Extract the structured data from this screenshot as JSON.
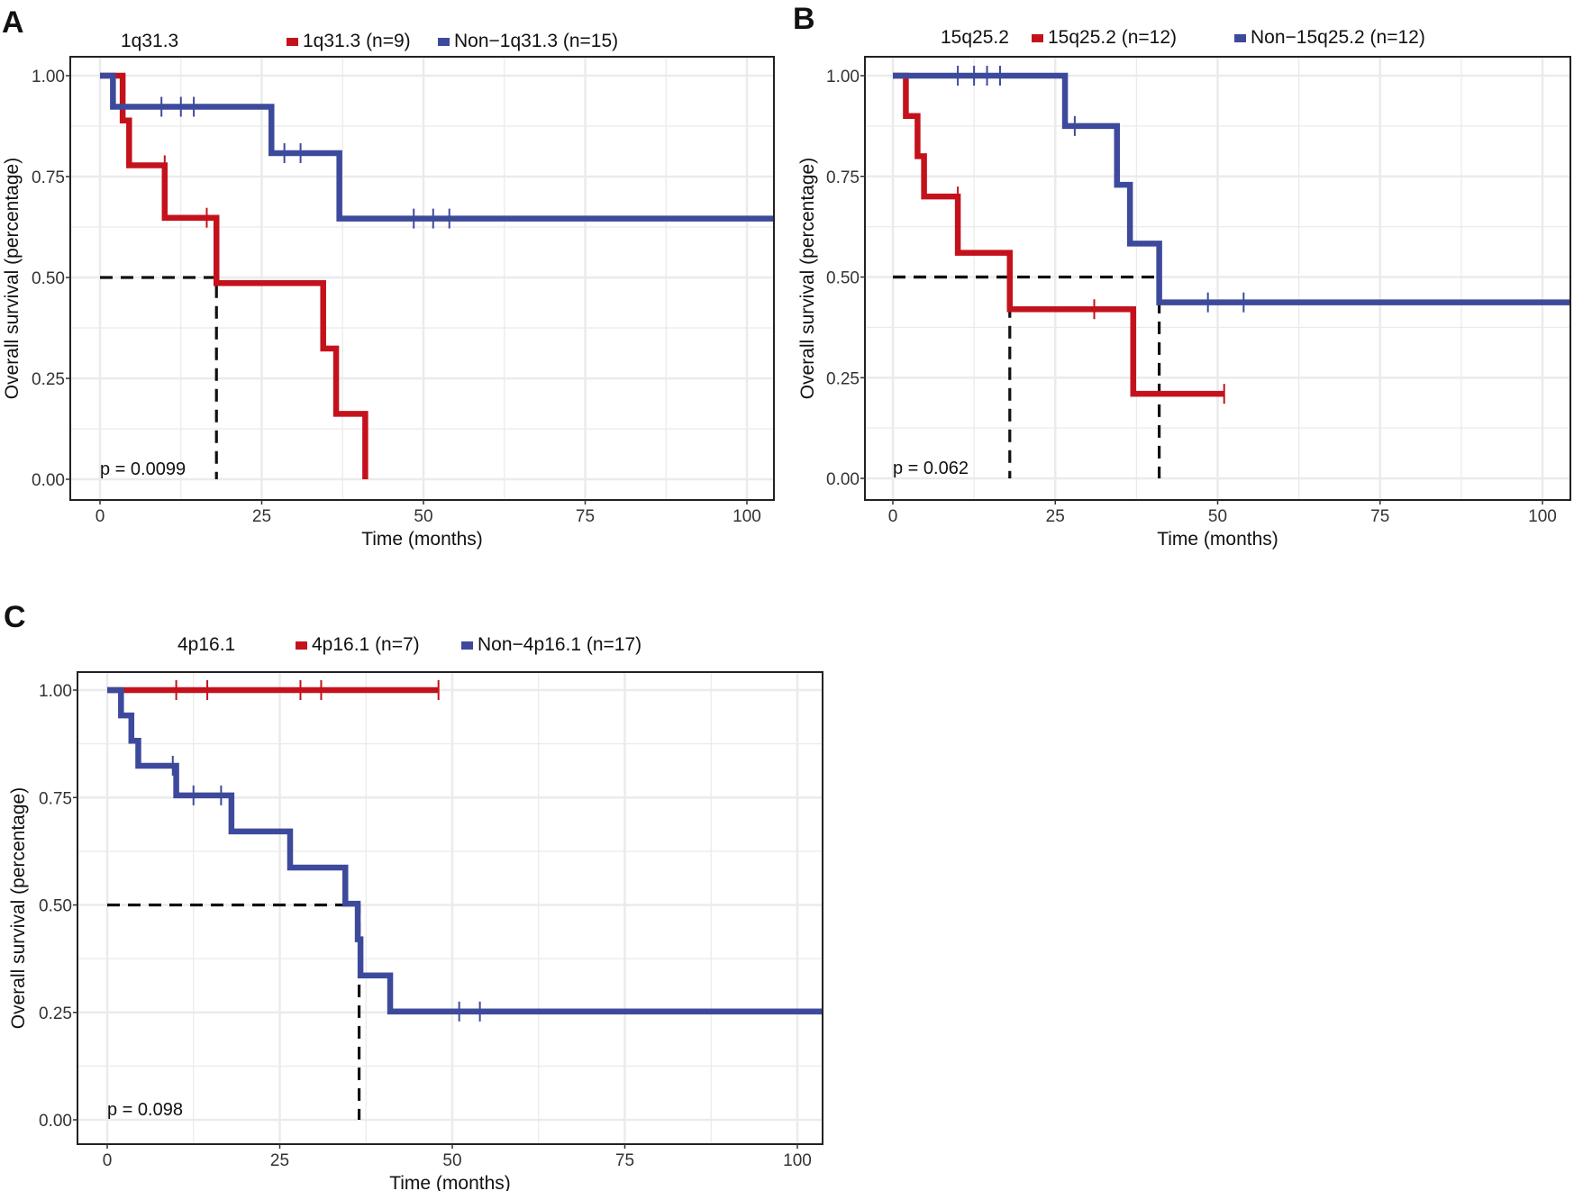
{
  "colors": {
    "red": "#c4121c",
    "blue": "#3d4a9c",
    "grid": "#ebebeb",
    "median": "#111111"
  },
  "chart_data": [
    {
      "type": "line",
      "panel": "A",
      "legend_title": "1q31.3",
      "xlabel": "Time (months)",
      "ylabel": "Overall survival (percentage)",
      "xlim": [
        -5,
        105
      ],
      "ylim": [
        -0.05,
        1.05
      ],
      "xticks": [
        "0",
        "25",
        "50",
        "75",
        "100"
      ],
      "xtick_values": [
        0,
        25,
        50,
        75,
        100
      ],
      "yticks": [
        "0.00",
        "0.25",
        "0.50",
        "0.75",
        "1.00"
      ],
      "ytick_values": [
        0,
        0.25,
        0.5,
        0.75,
        1
      ],
      "p_value": "p = 0.0099",
      "medians": [
        18
      ],
      "series": [
        {
          "name": "1q31.3 (n=9)",
          "color": "red",
          "steps": [
            [
              0,
              1
            ],
            [
              3.5,
              0.889
            ],
            [
              4.5,
              0.778
            ],
            [
              10,
              0.648
            ],
            [
              18,
              0.486
            ],
            [
              34.5,
              0.324
            ],
            [
              36.5,
              0.162
            ],
            [
              41,
              0
            ]
          ],
          "end": 41,
          "censors": [
            [
              10,
              0.778
            ],
            [
              16.5,
              0.648
            ]
          ]
        },
        {
          "name": "Non−1q31.3 (n=15)",
          "color": "blue",
          "steps": [
            [
              0,
              1
            ],
            [
              2,
              0.923
            ],
            [
              26.5,
              0.808
            ],
            [
              37,
              0.646
            ]
          ],
          "end": 105,
          "censors": [
            [
              9.5,
              0.923
            ],
            [
              12.5,
              0.923
            ],
            [
              14.5,
              0.923
            ],
            [
              28.5,
              0.808
            ],
            [
              31,
              0.808
            ],
            [
              48.5,
              0.646
            ],
            [
              51.5,
              0.646
            ],
            [
              54,
              0.646
            ]
          ]
        }
      ]
    },
    {
      "type": "line",
      "panel": "B",
      "legend_title": "15q25.2",
      "xlabel": "Time (months)",
      "ylabel": "Overall survival (percentage)",
      "xlim": [
        -5,
        105
      ],
      "ylim": [
        -0.05,
        1.05
      ],
      "xticks": [
        "0",
        "25",
        "50",
        "75",
        "100"
      ],
      "xtick_values": [
        0,
        25,
        50,
        75,
        100
      ],
      "yticks": [
        "0.00",
        "0.25",
        "0.50",
        "0.75",
        "1.00"
      ],
      "ytick_values": [
        0,
        0.25,
        0.5,
        0.75,
        1
      ],
      "p_value": "p = 0.062",
      "medians": [
        18,
        41
      ],
      "series": [
        {
          "name": "15q25.2 (n=12)",
          "color": "red",
          "steps": [
            [
              0,
              1
            ],
            [
              2,
              0.9
            ],
            [
              3.8,
              0.8
            ],
            [
              4.8,
              0.7
            ],
            [
              10,
              0.56
            ],
            [
              18,
              0.42
            ],
            [
              37,
              0.21
            ]
          ],
          "end": 51,
          "censors": [
            [
              10,
              0.7
            ],
            [
              31,
              0.42
            ],
            [
              51,
              0.21
            ]
          ]
        },
        {
          "name": "Non−15q25.2 (n=12)",
          "color": "blue",
          "steps": [
            [
              0,
              1
            ],
            [
              26.5,
              0.875
            ],
            [
              34.5,
              0.729
            ],
            [
              36.5,
              0.583
            ],
            [
              41,
              0.437
            ]
          ],
          "end": 105,
          "censors": [
            [
              10,
              1
            ],
            [
              12.5,
              1
            ],
            [
              14.5,
              1
            ],
            [
              16.5,
              1
            ],
            [
              28,
              0.875
            ],
            [
              48.5,
              0.437
            ],
            [
              54,
              0.437
            ]
          ]
        }
      ]
    },
    {
      "type": "line",
      "panel": "C",
      "legend_title": "4p16.1",
      "xlabel": "Time (months)",
      "ylabel": "Overall survival (percentage)",
      "xlim": [
        -5,
        105
      ],
      "ylim": [
        -0.05,
        1.05
      ],
      "xticks": [
        "0",
        "25",
        "50",
        "75",
        "100"
      ],
      "xtick_values": [
        0,
        25,
        50,
        75,
        100
      ],
      "yticks": [
        "0.00",
        "0.25",
        "0.50",
        "0.75",
        "1.00"
      ],
      "ytick_values": [
        0,
        0.25,
        0.5,
        0.75,
        1
      ],
      "p_value": "p = 0.098",
      "medians": [
        36.5
      ],
      "series": [
        {
          "name": "4p16.1 (n=7)",
          "color": "red",
          "steps": [
            [
              0,
              1
            ]
          ],
          "end": 48,
          "censors": [
            [
              10,
              1
            ],
            [
              14.5,
              1
            ],
            [
              28,
              1
            ],
            [
              31,
              1
            ],
            [
              48,
              1
            ]
          ]
        },
        {
          "name": "Non−4p16.1 (n=17)",
          "color": "blue",
          "steps": [
            [
              0,
              1
            ],
            [
              2,
              0.941
            ],
            [
              3.5,
              0.882
            ],
            [
              4.5,
              0.824
            ],
            [
              10,
              0.755
            ],
            [
              18,
              0.671
            ],
            [
              26.5,
              0.587
            ],
            [
              34.5,
              0.503
            ],
            [
              36.3,
              0.42
            ],
            [
              36.7,
              0.336
            ],
            [
              41,
              0.252
            ]
          ],
          "end": 105,
          "censors": [
            [
              9.5,
              0.824
            ],
            [
              12.5,
              0.755
            ],
            [
              16.5,
              0.755
            ],
            [
              51,
              0.252
            ],
            [
              54,
              0.252
            ]
          ]
        }
      ]
    }
  ]
}
